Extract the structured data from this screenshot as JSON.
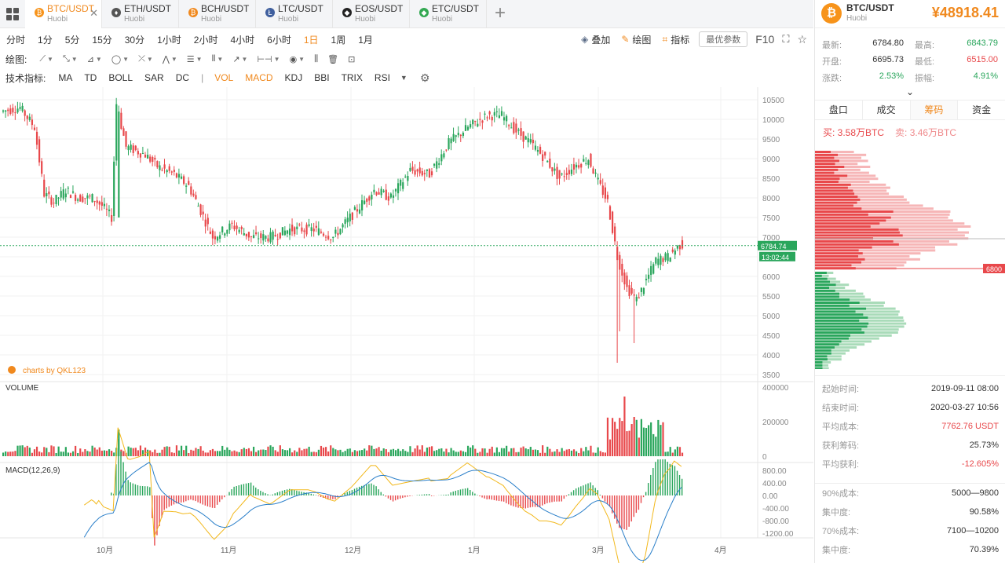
{
  "tabs": [
    {
      "symbol": "BTC/USDT",
      "exchange": "Huobi",
      "icon": "btc-icon",
      "color": "#f7931a",
      "glyph": "₿",
      "active": true
    },
    {
      "symbol": "ETH/USDT",
      "exchange": "Huobi",
      "icon": "eth-icon",
      "color": "#555555",
      "glyph": "♦",
      "active": false
    },
    {
      "symbol": "BCH/USDT",
      "exchange": "Huobi",
      "icon": "bch-icon",
      "color": "#f0891e",
      "glyph": "₿",
      "active": false
    },
    {
      "symbol": "LTC/USDT",
      "exchange": "Huobi",
      "icon": "ltc-icon",
      "color": "#3f5f9e",
      "glyph": "Ł",
      "active": false
    },
    {
      "symbol": "EOS/USDT",
      "exchange": "Huobi",
      "icon": "eos-icon",
      "color": "#222222",
      "glyph": "◆",
      "active": false
    },
    {
      "symbol": "ETC/USDT",
      "exchange": "Huobi",
      "icon": "etc-icon",
      "color": "#33a852",
      "glyph": "◆",
      "active": false
    }
  ],
  "periods": [
    "分时",
    "1分",
    "5分",
    "15分",
    "30分",
    "1小时",
    "2小时",
    "4小时",
    "6小时",
    "1日",
    "1周",
    "1月"
  ],
  "active_period": "1日",
  "tools": {
    "overlay": "叠加",
    "draw": "绘图",
    "indicator": "指标",
    "pref": "最优参数",
    "f10": "F10"
  },
  "draw_label": "绘图:",
  "indicator_label": "技术指标:",
  "indicators": [
    "MA",
    "TD",
    "BOLL",
    "SAR",
    "DC"
  ],
  "active_indicators": [
    "VOL",
    "MACD"
  ],
  "more_indicators": [
    "KDJ",
    "BBI",
    "TRIX",
    "RSI"
  ],
  "chart": {
    "watermark": "charts by QKL123",
    "volume_label": "VOLUME",
    "macd_label": "MACD(12,26,9)",
    "price_ticks": [
      "10500",
      "10000",
      "9500",
      "9000",
      "8500",
      "8000",
      "7500",
      "7000",
      "6500",
      "6000",
      "5500",
      "5000",
      "4500",
      "4000",
      "3500"
    ],
    "volume_ticks": [
      "400000",
      "200000",
      "0"
    ],
    "macd_ticks": [
      "800.00",
      "400.00",
      "0.00",
      "-400.00",
      "-800.00",
      "-1200.00"
    ],
    "months": [
      "10月",
      "11月",
      "12月",
      "1月",
      "3月",
      "4月"
    ],
    "last_price": "6784.74",
    "countdown": "13:02:44",
    "up_color": "#2aa65c",
    "down_color": "#e8484b"
  },
  "panel": {
    "pair": "BTC/USDT",
    "exchange": "Huobi",
    "price": "¥48918.41",
    "stats": [
      {
        "k": "最新:",
        "v": "6784.80",
        "k2": "最高:",
        "v2": "6843.79",
        "c2": "up"
      },
      {
        "k": "开盘:",
        "v": "6695.73",
        "k2": "最低:",
        "v2": "6515.00",
        "c2": "down"
      },
      {
        "k": "涨跌:",
        "v": "2.53%",
        "c": "up",
        "k2": "振幅:",
        "v2": "4.91%",
        "c2": "up"
      }
    ],
    "tabs": [
      "盘口",
      "成交",
      "筹码",
      "资金"
    ],
    "active_tab": "筹码",
    "buy": "买:  3.58万BTC",
    "sell": "卖:  3.46万BTC",
    "chip_price_label": "6800",
    "info": [
      {
        "k": "起始时间:",
        "v": "2019-09-11 08:00"
      },
      {
        "k": "结束时间:",
        "v": "2020-03-27 10:56"
      },
      {
        "k": "平均成本:",
        "v": "7762.76 USDT",
        "red": true
      },
      {
        "k": "获利筹码:",
        "v": "25.73%"
      },
      {
        "k": "平均获利:",
        "v": "-12.605%",
        "red": true
      }
    ],
    "info2": [
      {
        "k": "90%成本:",
        "v": "5000—9800"
      },
      {
        "k": "集中度:",
        "v": "90.58%"
      },
      {
        "k": "70%成本:",
        "v": "7100—10200"
      },
      {
        "k": "集中度:",
        "v": "70.39%"
      }
    ]
  }
}
